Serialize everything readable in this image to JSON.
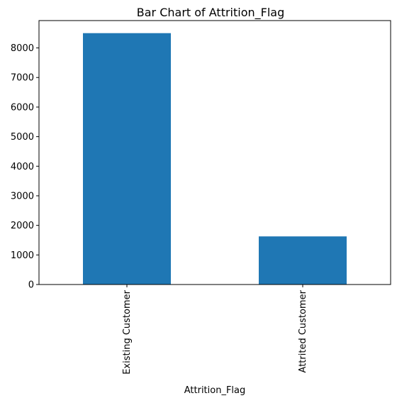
{
  "chart_data": {
    "type": "bar",
    "title": "Bar Chart of Attrition_Flag",
    "xlabel": "Attrition_Flag",
    "ylabel": "",
    "categories": [
      "Existing Customer",
      "Attrited Customer"
    ],
    "values": [
      8500,
      1627
    ],
    "ylim": [
      0,
      8925
    ],
    "yticks": [
      0,
      1000,
      2000,
      3000,
      4000,
      5000,
      6000,
      7000,
      8000
    ],
    "grid": false,
    "legend": "none",
    "bar_color": "#1f77b4"
  }
}
